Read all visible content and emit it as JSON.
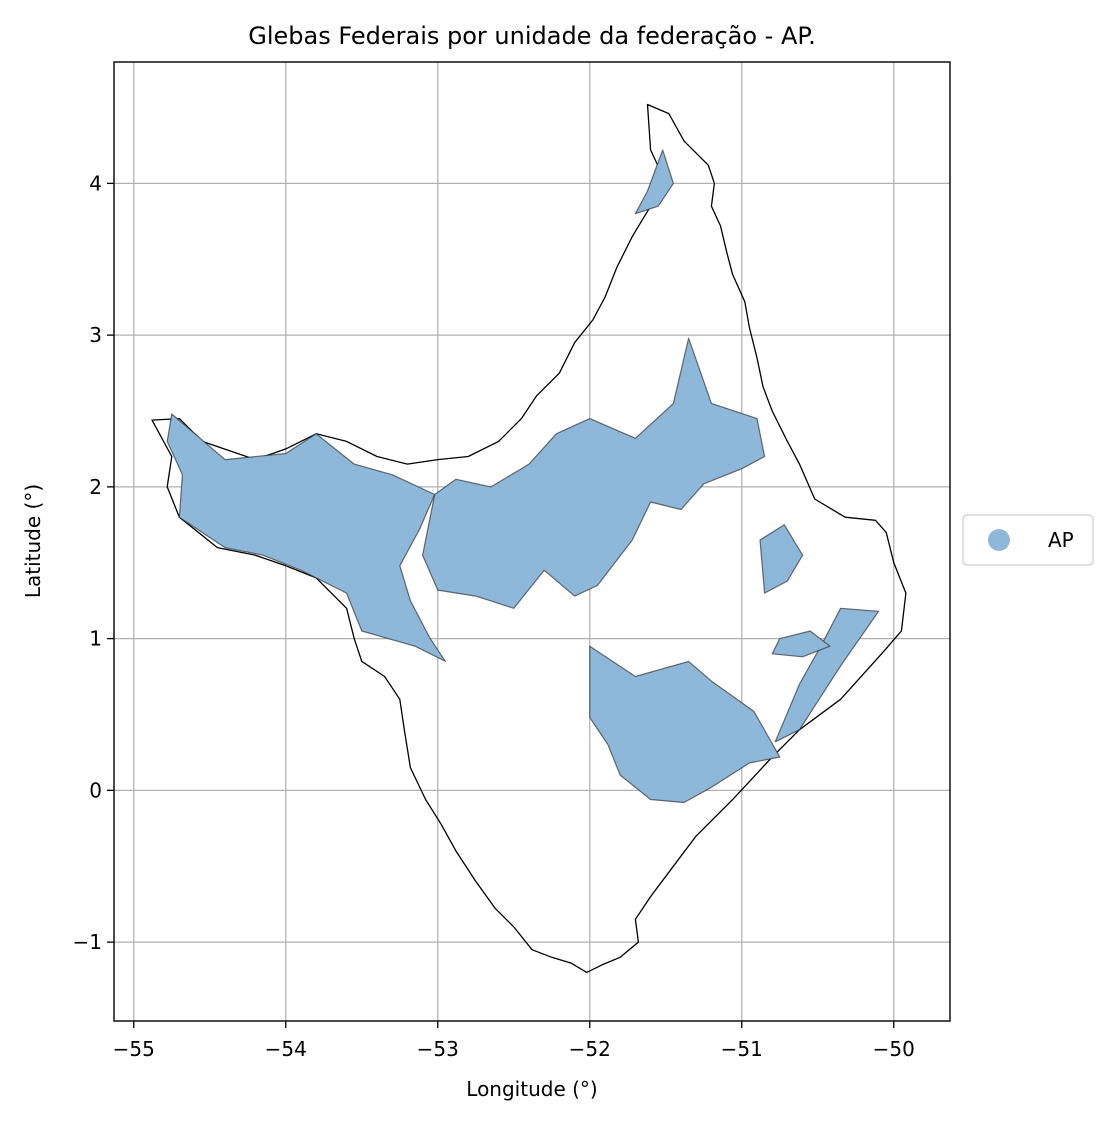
{
  "title": "Glebas Federais por unidade da federação - AP.",
  "xlabel": "Longitude (°)",
  "ylabel": "Latitude (°)",
  "xticks": [
    {
      "value": -55,
      "label": "−55"
    },
    {
      "value": -54,
      "label": "−54"
    },
    {
      "value": -53,
      "label": "−53"
    },
    {
      "value": -52,
      "label": "−52"
    },
    {
      "value": -51,
      "label": "−51"
    },
    {
      "value": -50,
      "label": "−50"
    }
  ],
  "yticks": [
    {
      "value": -1,
      "label": "−1"
    },
    {
      "value": 0,
      "label": "0"
    },
    {
      "value": 1,
      "label": "1"
    },
    {
      "value": 2,
      "label": "2"
    },
    {
      "value": 3,
      "label": "3"
    },
    {
      "value": 4,
      "label": "4"
    }
  ],
  "legend": {
    "label": "AP",
    "color": "#8db8d9",
    "placement": "right, outside plot"
  },
  "colors": {
    "fill": "#8db8d9",
    "outline": "#000000",
    "grid": "#b0b0b0"
  },
  "chart_data": {
    "type": "map",
    "title": "Glebas Federais por unidade da federação - AP.",
    "xlabel": "Longitude (°)",
    "ylabel": "Latitude (°)",
    "xlim": [
      -55.13,
      -49.63
    ],
    "ylim": [
      -1.52,
      4.8
    ],
    "grid": true,
    "series": [
      {
        "name": "AP",
        "color": "#8db8d9"
      }
    ],
    "state_outline": [
      [
        -51.62,
        4.52
      ],
      [
        -51.48,
        4.46
      ],
      [
        -51.38,
        4.28
      ],
      [
        -51.22,
        4.12
      ],
      [
        -51.18,
        4.0
      ],
      [
        -51.2,
        3.85
      ],
      [
        -51.14,
        3.72
      ],
      [
        -51.1,
        3.55
      ],
      [
        -51.06,
        3.4
      ],
      [
        -50.98,
        3.22
      ],
      [
        -50.95,
        3.05
      ],
      [
        -50.9,
        2.85
      ],
      [
        -50.86,
        2.66
      ],
      [
        -50.8,
        2.5
      ],
      [
        -50.7,
        2.3
      ],
      [
        -50.62,
        2.15
      ],
      [
        -50.52,
        1.92
      ],
      [
        -50.32,
        1.8
      ],
      [
        -50.12,
        1.78
      ],
      [
        -50.05,
        1.7
      ],
      [
        -50.0,
        1.5
      ],
      [
        -49.92,
        1.3
      ],
      [
        -49.95,
        1.05
      ],
      [
        -50.08,
        0.9
      ],
      [
        -50.35,
        0.6
      ],
      [
        -50.62,
        0.4
      ],
      [
        -50.8,
        0.22
      ],
      [
        -51.05,
        -0.05
      ],
      [
        -51.3,
        -0.3
      ],
      [
        -51.45,
        -0.5
      ],
      [
        -51.6,
        -0.7
      ],
      [
        -51.7,
        -0.85
      ],
      [
        -51.68,
        -1.0
      ],
      [
        -51.8,
        -1.1
      ],
      [
        -51.92,
        -1.15
      ],
      [
        -52.02,
        -1.2
      ],
      [
        -52.12,
        -1.14
      ],
      [
        -52.25,
        -1.1
      ],
      [
        -52.38,
        -1.05
      ],
      [
        -52.5,
        -0.9
      ],
      [
        -52.62,
        -0.78
      ],
      [
        -52.75,
        -0.6
      ],
      [
        -52.88,
        -0.4
      ],
      [
        -52.98,
        -0.22
      ],
      [
        -53.08,
        -0.06
      ],
      [
        -53.18,
        0.15
      ],
      [
        -53.22,
        0.4
      ],
      [
        -53.25,
        0.6
      ],
      [
        -53.35,
        0.75
      ],
      [
        -53.5,
        0.85
      ],
      [
        -53.55,
        1.0
      ],
      [
        -53.6,
        1.2
      ],
      [
        -53.8,
        1.4
      ],
      [
        -54.0,
        1.48
      ],
      [
        -54.2,
        1.55
      ],
      [
        -54.45,
        1.6
      ],
      [
        -54.7,
        1.8
      ],
      [
        -54.78,
        2.0
      ],
      [
        -54.75,
        2.2
      ],
      [
        -54.88,
        2.44
      ],
      [
        -54.7,
        2.45
      ],
      [
        -54.55,
        2.3
      ],
      [
        -54.2,
        2.18
      ],
      [
        -54.0,
        2.25
      ],
      [
        -53.8,
        2.35
      ],
      [
        -53.6,
        2.3
      ],
      [
        -53.4,
        2.2
      ],
      [
        -53.2,
        2.15
      ],
      [
        -53.0,
        2.18
      ],
      [
        -52.8,
        2.2
      ],
      [
        -52.6,
        2.3
      ],
      [
        -52.45,
        2.45
      ],
      [
        -52.35,
        2.6
      ],
      [
        -52.2,
        2.75
      ],
      [
        -52.1,
        2.95
      ],
      [
        -51.98,
        3.1
      ],
      [
        -51.9,
        3.25
      ],
      [
        -51.82,
        3.45
      ],
      [
        -51.72,
        3.65
      ],
      [
        -51.6,
        3.85
      ],
      [
        -51.52,
        4.05
      ],
      [
        -51.6,
        4.22
      ],
      [
        -51.62,
        4.52
      ]
    ],
    "glebas": [
      [
        [
          -51.52,
          4.22
        ],
        [
          -51.45,
          4.0
        ],
        [
          -51.55,
          3.85
        ],
        [
          -51.7,
          3.8
        ],
        [
          -51.62,
          3.95
        ],
        [
          -51.52,
          4.22
        ]
      ],
      [
        [
          -54.75,
          2.48
        ],
        [
          -54.4,
          2.18
        ],
        [
          -54.0,
          2.22
        ],
        [
          -53.8,
          2.35
        ],
        [
          -53.55,
          2.15
        ],
        [
          -53.3,
          2.08
        ],
        [
          -53.02,
          1.95
        ],
        [
          -53.12,
          1.72
        ],
        [
          -53.25,
          1.48
        ],
        [
          -53.18,
          1.25
        ],
        [
          -53.05,
          1.0
        ],
        [
          -52.95,
          0.85
        ],
        [
          -53.15,
          0.95
        ],
        [
          -53.5,
          1.05
        ],
        [
          -53.6,
          1.3
        ],
        [
          -53.9,
          1.45
        ],
        [
          -54.15,
          1.55
        ],
        [
          -54.4,
          1.6
        ],
        [
          -54.7,
          1.8
        ],
        [
          -54.68,
          2.08
        ],
        [
          -54.78,
          2.3
        ],
        [
          -54.75,
          2.48
        ]
      ],
      [
        [
          -53.02,
          1.95
        ],
        [
          -52.88,
          2.05
        ],
        [
          -52.65,
          2.0
        ],
        [
          -52.4,
          2.15
        ],
        [
          -52.22,
          2.35
        ],
        [
          -52.0,
          2.45
        ],
        [
          -51.7,
          2.32
        ],
        [
          -51.45,
          2.55
        ],
        [
          -51.35,
          2.98
        ],
        [
          -51.2,
          2.55
        ],
        [
          -50.9,
          2.45
        ],
        [
          -50.85,
          2.2
        ],
        [
          -51.0,
          2.12
        ],
        [
          -51.25,
          2.02
        ],
        [
          -51.4,
          1.85
        ],
        [
          -51.6,
          1.9
        ],
        [
          -51.72,
          1.65
        ],
        [
          -51.95,
          1.35
        ],
        [
          -52.1,
          1.28
        ],
        [
          -52.3,
          1.45
        ],
        [
          -52.5,
          1.2
        ],
        [
          -52.75,
          1.28
        ],
        [
          -53.0,
          1.32
        ],
        [
          -53.1,
          1.55
        ],
        [
          -53.02,
          1.95
        ]
      ],
      [
        [
          -52.0,
          0.95
        ],
        [
          -51.7,
          0.75
        ],
        [
          -51.35,
          0.85
        ],
        [
          -51.2,
          0.72
        ],
        [
          -50.92,
          0.52
        ],
        [
          -50.75,
          0.22
        ],
        [
          -50.95,
          0.18
        ],
        [
          -51.2,
          0.02
        ],
        [
          -51.38,
          -0.08
        ],
        [
          -51.6,
          -0.06
        ],
        [
          -51.8,
          0.1
        ],
        [
          -51.88,
          0.3
        ],
        [
          -52.0,
          0.48
        ],
        [
          -52.0,
          0.95
        ]
      ],
      [
        [
          -50.88,
          1.65
        ],
        [
          -50.72,
          1.75
        ],
        [
          -50.6,
          1.55
        ],
        [
          -50.7,
          1.38
        ],
        [
          -50.85,
          1.3
        ],
        [
          -50.88,
          1.65
        ]
      ],
      [
        [
          -50.35,
          1.2
        ],
        [
          -50.1,
          1.18
        ],
        [
          -50.35,
          0.82
        ],
        [
          -50.62,
          0.4
        ],
        [
          -50.78,
          0.32
        ],
        [
          -50.62,
          0.7
        ],
        [
          -50.48,
          0.95
        ],
        [
          -50.35,
          1.2
        ]
      ],
      [
        [
          -50.75,
          1.0
        ],
        [
          -50.55,
          1.05
        ],
        [
          -50.42,
          0.95
        ],
        [
          -50.6,
          0.88
        ],
        [
          -50.8,
          0.9
        ],
        [
          -50.75,
          1.0
        ]
      ]
    ]
  }
}
